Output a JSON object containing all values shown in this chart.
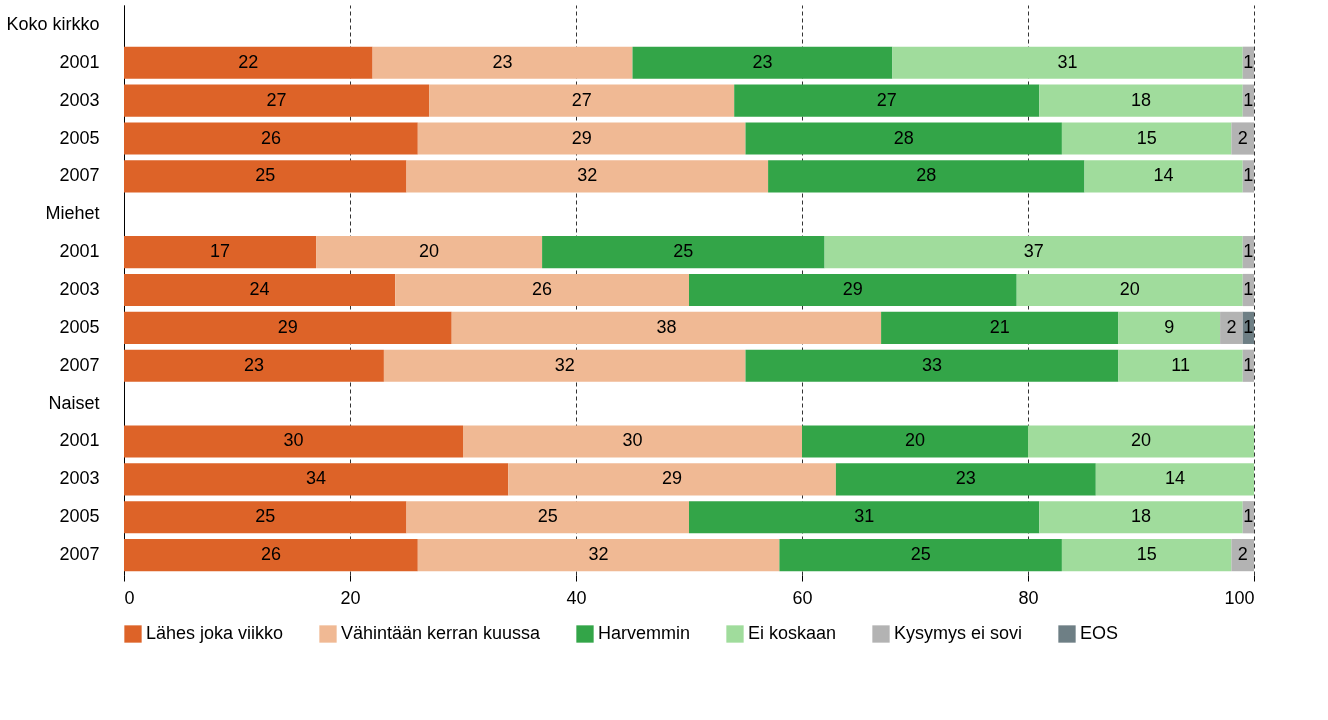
{
  "chart_data": {
    "type": "bar",
    "orientation": "horizontal",
    "stacked": true,
    "data_labels": true,
    "grid": "x",
    "line_style": "dashed",
    "legend": "bottom",
    "categories": [
      "Koko kirkko",
      "2001",
      "2003",
      "2005",
      "2007",
      "Miehet",
      "2001",
      "2003",
      "2005",
      "2007",
      "Naiset",
      "2001",
      "2003",
      "2005",
      "2007"
    ],
    "xlim": [
      0,
      100
    ],
    "xticks": [
      0,
      20,
      40,
      60,
      80,
      100
    ],
    "series": [
      {
        "name": "Lähes joka viikko",
        "color": "#dd6328",
        "values": [
          null,
          22,
          27,
          26,
          25,
          null,
          17,
          24,
          29,
          23,
          null,
          30,
          34,
          25,
          26
        ]
      },
      {
        "name": "Vähintään kerran kuussa",
        "color": "#f0b994",
        "values": [
          null,
          23,
          27,
          29,
          32,
          null,
          20,
          26,
          38,
          32,
          null,
          30,
          29,
          25,
          32
        ]
      },
      {
        "name": "Harvemmin",
        "color": "#33a548",
        "values": [
          null,
          23,
          27,
          28,
          28,
          null,
          25,
          29,
          21,
          33,
          null,
          20,
          23,
          31,
          25
        ]
      },
      {
        "name": "Ei koskaan",
        "color": "#a0dc9c",
        "values": [
          null,
          31,
          18,
          15,
          14,
          null,
          37,
          20,
          9,
          11,
          null,
          20,
          14,
          18,
          15
        ]
      },
      {
        "name": "Kysymys ei sovi",
        "color": "#b3b3b3",
        "values": [
          null,
          1,
          1,
          2,
          1,
          null,
          1,
          1,
          2,
          1,
          null,
          null,
          null,
          1,
          2
        ]
      },
      {
        "name": "EOS",
        "color": "#6e7f85",
        "values": [
          null,
          null,
          null,
          null,
          null,
          null,
          null,
          null,
          1,
          null,
          null,
          null,
          null,
          null,
          null
        ]
      }
    ]
  }
}
